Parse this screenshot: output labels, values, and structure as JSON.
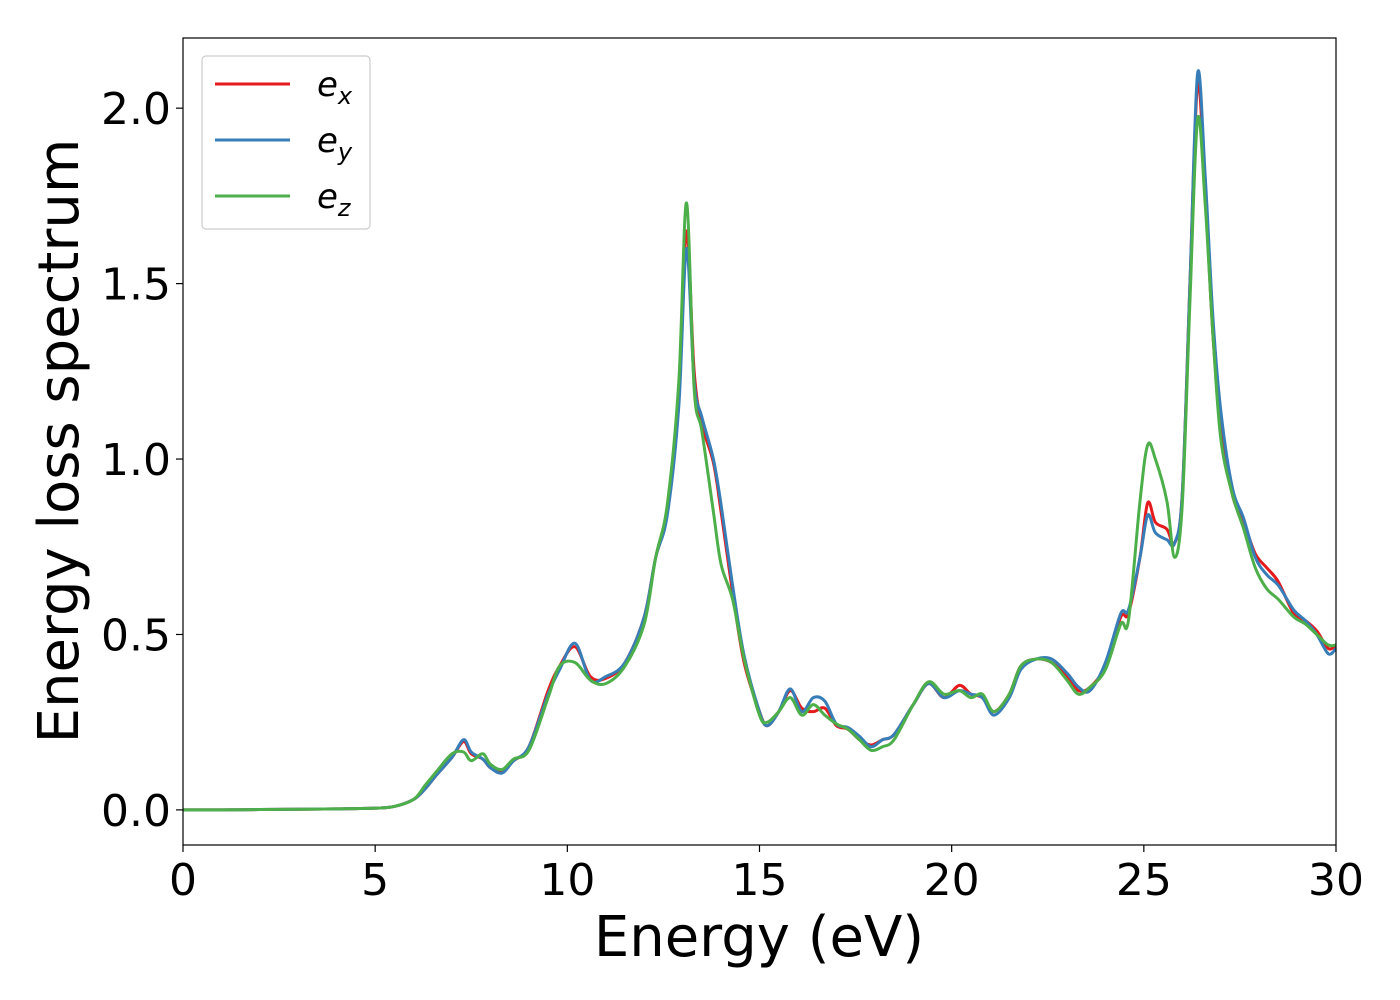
{
  "chart_data": {
    "type": "line",
    "title": "",
    "xlabel": "Energy (eV)",
    "ylabel": "Energy loss spectrum",
    "xlim": [
      0,
      30
    ],
    "ylim": [
      -0.1,
      2.2
    ],
    "xticks": [
      0,
      5,
      10,
      15,
      20,
      25,
      30
    ],
    "xtick_labels": [
      "0",
      "5",
      "10",
      "15",
      "20",
      "25",
      "30"
    ],
    "yticks": [
      0.0,
      0.5,
      1.0,
      1.5,
      2.0
    ],
    "ytick_labels": [
      "0.0",
      "0.5",
      "1.0",
      "1.5",
      "2.0"
    ],
    "grid": false,
    "legend_position": "top-left",
    "x": [
      0,
      1,
      2,
      3,
      4,
      5,
      5.5,
      6,
      6.3,
      6.6,
      7.0,
      7.3,
      7.5,
      7.8,
      8.0,
      8.3,
      8.6,
      9.0,
      9.5,
      9.8,
      10.2,
      10.6,
      11.0,
      11.5,
      12.0,
      12.3,
      12.6,
      12.9,
      13.1,
      13.3,
      13.5,
      13.8,
      14.0,
      14.3,
      14.6,
      15.0,
      15.2,
      15.5,
      15.8,
      16.1,
      16.4,
      16.7,
      17.0,
      17.3,
      17.6,
      17.9,
      18.2,
      18.5,
      19.0,
      19.4,
      19.8,
      20.2,
      20.5,
      20.8,
      21.1,
      21.5,
      21.8,
      22.2,
      22.6,
      23.0,
      23.3,
      23.6,
      24.0,
      24.4,
      24.6,
      24.9,
      25.1,
      25.3,
      25.6,
      25.8,
      26.0,
      26.2,
      26.4,
      26.6,
      26.8,
      27.0,
      27.3,
      27.6,
      27.9,
      28.2,
      28.5,
      28.9,
      29.2,
      29.5,
      29.8,
      30.0
    ],
    "series": [
      {
        "name": "e_x",
        "color": "#e41a1c",
        "values": [
          0.0,
          0.0,
          0.001,
          0.002,
          0.003,
          0.005,
          0.01,
          0.03,
          0.06,
          0.1,
          0.15,
          0.195,
          0.16,
          0.145,
          0.12,
          0.11,
          0.14,
          0.18,
          0.34,
          0.41,
          0.465,
          0.38,
          0.375,
          0.42,
          0.55,
          0.72,
          0.85,
          1.2,
          1.65,
          1.25,
          1.1,
          0.99,
          0.85,
          0.62,
          0.42,
          0.28,
          0.24,
          0.28,
          0.34,
          0.29,
          0.28,
          0.29,
          0.24,
          0.23,
          0.2,
          0.185,
          0.2,
          0.215,
          0.3,
          0.36,
          0.32,
          0.355,
          0.33,
          0.32,
          0.28,
          0.33,
          0.41,
          0.43,
          0.42,
          0.38,
          0.34,
          0.35,
          0.41,
          0.55,
          0.56,
          0.72,
          0.875,
          0.82,
          0.8,
          0.76,
          0.9,
          1.5,
          2.07,
          1.75,
          1.35,
          1.1,
          0.9,
          0.82,
          0.73,
          0.69,
          0.65,
          0.56,
          0.54,
          0.51,
          0.46,
          0.47
        ]
      },
      {
        "name": "e_y",
        "color": "#377eb8",
        "values": [
          0.0,
          0.0,
          0.001,
          0.002,
          0.003,
          0.005,
          0.01,
          0.03,
          0.06,
          0.1,
          0.15,
          0.2,
          0.165,
          0.145,
          0.12,
          0.105,
          0.14,
          0.18,
          0.33,
          0.4,
          0.475,
          0.37,
          0.38,
          0.42,
          0.55,
          0.72,
          0.84,
          1.15,
          1.6,
          1.22,
          1.12,
          1.0,
          0.87,
          0.64,
          0.44,
          0.28,
          0.24,
          0.28,
          0.345,
          0.28,
          0.32,
          0.31,
          0.245,
          0.235,
          0.21,
          0.18,
          0.2,
          0.215,
          0.3,
          0.36,
          0.32,
          0.34,
          0.33,
          0.32,
          0.27,
          0.32,
          0.4,
          0.43,
          0.43,
          0.39,
          0.35,
          0.34,
          0.42,
          0.56,
          0.57,
          0.72,
          0.84,
          0.79,
          0.77,
          0.76,
          0.9,
          1.5,
          2.1,
          1.8,
          1.4,
          1.14,
          0.92,
          0.83,
          0.72,
          0.67,
          0.64,
          0.57,
          0.54,
          0.5,
          0.445,
          0.46
        ]
      },
      {
        "name": "e_z",
        "color": "#4daf4a",
        "values": [
          0.0,
          0.0,
          0.001,
          0.002,
          0.003,
          0.005,
          0.01,
          0.03,
          0.07,
          0.11,
          0.16,
          0.165,
          0.14,
          0.16,
          0.13,
          0.115,
          0.145,
          0.17,
          0.32,
          0.41,
          0.42,
          0.37,
          0.36,
          0.41,
          0.53,
          0.72,
          0.87,
          1.22,
          1.73,
          1.2,
          1.08,
          0.85,
          0.7,
          0.6,
          0.43,
          0.27,
          0.25,
          0.28,
          0.32,
          0.27,
          0.3,
          0.27,
          0.245,
          0.23,
          0.2,
          0.17,
          0.18,
          0.2,
          0.3,
          0.365,
          0.33,
          0.34,
          0.32,
          0.33,
          0.28,
          0.33,
          0.41,
          0.43,
          0.42,
          0.37,
          0.33,
          0.35,
          0.4,
          0.53,
          0.54,
          0.88,
          1.04,
          1.0,
          0.88,
          0.72,
          0.87,
          1.45,
          1.97,
          1.72,
          1.35,
          1.06,
          0.9,
          0.8,
          0.69,
          0.63,
          0.6,
          0.55,
          0.53,
          0.5,
          0.47,
          0.47
        ]
      }
    ],
    "legend_entries": [
      {
        "base": "e",
        "sub": "x",
        "color": "#e41a1c"
      },
      {
        "base": "e",
        "sub": "y",
        "color": "#377eb8"
      },
      {
        "base": "e",
        "sub": "z",
        "color": "#4daf4a"
      }
    ]
  }
}
